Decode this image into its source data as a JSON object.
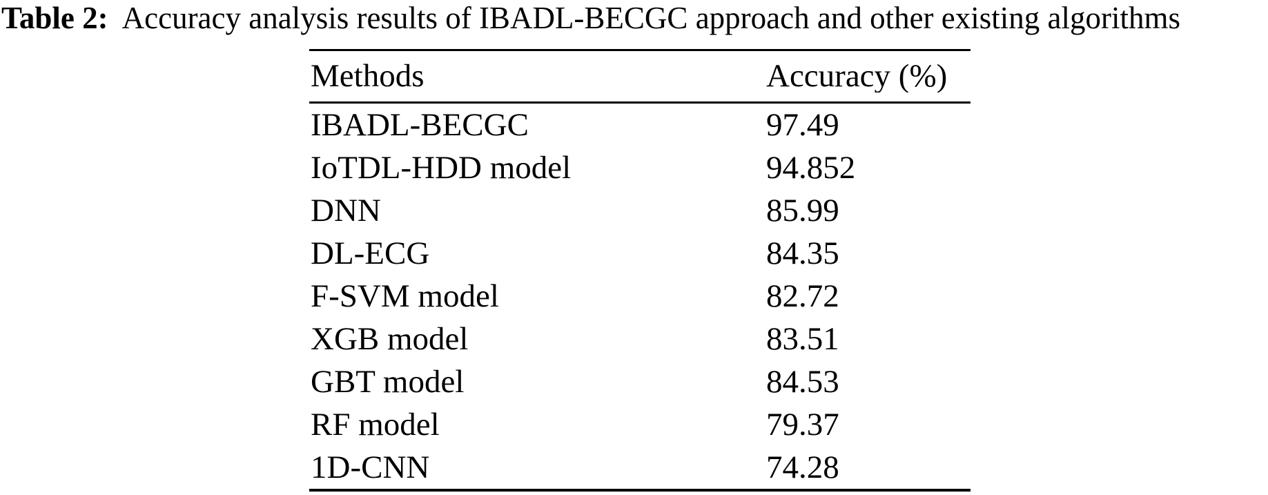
{
  "page": {
    "background_color": "#ffffff",
    "text_color": "#000000"
  },
  "caption": {
    "label": "Table 2:",
    "text": "Accuracy analysis results of IBADL-BECGC approach and other existing algorithms"
  },
  "table": {
    "headers": {
      "method": "Methods",
      "accuracy": "Accuracy (%)"
    },
    "rows": [
      {
        "method": "IBADL-BECGC",
        "accuracy": "97.49"
      },
      {
        "method": "IoTDL-HDD model",
        "accuracy": "94.852"
      },
      {
        "method": "DNN",
        "accuracy": "85.99"
      },
      {
        "method": "DL-ECG",
        "accuracy": "84.35"
      },
      {
        "method": "F-SVM model",
        "accuracy": "82.72"
      },
      {
        "method": "XGB model",
        "accuracy": "83.51"
      },
      {
        "method": "GBT model",
        "accuracy": "84.53"
      },
      {
        "method": "RF model",
        "accuracy": "79.37"
      },
      {
        "method": "1D-CNN",
        "accuracy": "74.28"
      }
    ]
  },
  "chart_data": {
    "type": "table",
    "title": "Table 2: Accuracy analysis results of IBADL-BECGC approach and other existing algorithms",
    "columns": [
      "Methods",
      "Accuracy (%)"
    ],
    "categories": [
      "IBADL-BECGC",
      "IoTDL-HDD model",
      "DNN",
      "DL-ECG",
      "F-SVM model",
      "XGB model",
      "GBT model",
      "RF model",
      "1D-CNN"
    ],
    "values": [
      97.49,
      94.852,
      85.99,
      84.35,
      82.72,
      83.51,
      84.53,
      79.37,
      74.28
    ]
  }
}
